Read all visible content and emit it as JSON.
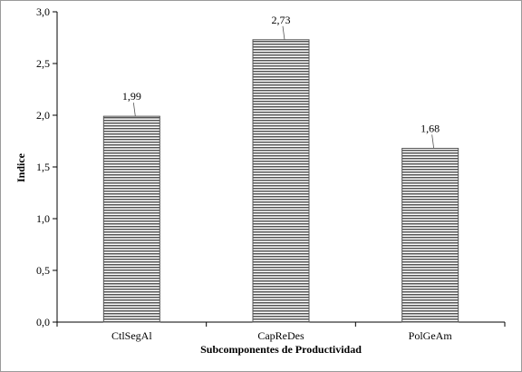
{
  "chart_data": {
    "type": "bar",
    "categories": [
      "CtlSegAl",
      "CapReDes",
      "PolGeAm"
    ],
    "values": [
      1.99,
      2.73,
      1.68
    ],
    "data_labels": [
      "1,99",
      "2,73",
      "1,68"
    ],
    "title": "",
    "xlabel": "Subcomponentes de Productividad",
    "ylabel": "Indice",
    "ylim": [
      0,
      3
    ],
    "yticks": [
      0,
      0.5,
      1,
      1.5,
      2,
      2.5,
      3
    ],
    "ytick_labels": [
      "0,0",
      "0,5",
      "1,0",
      "1,5",
      "2,0",
      "2,5",
      "3,0"
    ],
    "grid": false,
    "legend": "none",
    "bar_pattern": "horizontal-stripes",
    "colors": {
      "bar_stripe": "#555555",
      "bar_fill": "#ffffff",
      "axis": "#000000",
      "border": "#9a9a9a"
    }
  }
}
